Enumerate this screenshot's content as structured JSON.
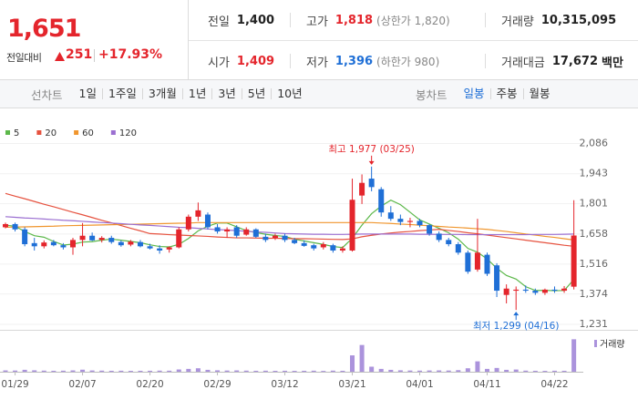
{
  "header": {
    "price": "1,651",
    "change_label": "전일대비",
    "change": "251",
    "change_rate": "+17.93%",
    "stats": [
      [
        {
          "label": "전일",
          "value": "1,400"
        },
        {
          "label": "고가",
          "value": "1,818",
          "note": "(상한가 1,820)"
        },
        {
          "label": "거래량",
          "value": "10,315,095"
        }
      ],
      [
        {
          "label": "시가",
          "value": "1,409"
        },
        {
          "label": "저가",
          "value": "1,396",
          "note": "(하한가 980)"
        },
        {
          "label": "거래대금",
          "value": "17,672",
          "unit": "백만"
        }
      ]
    ]
  },
  "tabs": {
    "line_heading": "선차트",
    "line_periods": [
      "1일",
      "1주일",
      "3개월",
      "1년",
      "3년",
      "5년",
      "10년"
    ],
    "candle_heading": "봉차트",
    "candle_periods": [
      "일봉",
      "주봉",
      "월봉"
    ]
  },
  "chart_data": {
    "type": "candlestick",
    "categories": [
      null,
      "01/29",
      null,
      null,
      null,
      null,
      null,
      null,
      "02/07",
      null,
      null,
      null,
      null,
      null,
      null,
      "02/20",
      null,
      null,
      null,
      null,
      null,
      null,
      "02/29",
      null,
      null,
      null,
      null,
      null,
      null,
      "03/12",
      null,
      null,
      null,
      null,
      null,
      null,
      "03/21",
      null,
      null,
      null,
      null,
      null,
      null,
      "04/01",
      null,
      null,
      null,
      null,
      null,
      null,
      "04/11",
      null,
      null,
      null,
      null,
      null,
      null,
      "04/22",
      null,
      null
    ],
    "open": [
      1690,
      1705,
      1680,
      1615,
      1600,
      1620,
      1605,
      1595,
      1630,
      1650,
      1630,
      1640,
      1620,
      1608,
      1620,
      1600,
      1590,
      1585,
      1595,
      1680,
      1740,
      1750,
      1690,
      1670,
      1690,
      1655,
      1680,
      1645,
      1640,
      1650,
      1630,
      1615,
      1605,
      1595,
      1605,
      1580,
      1580,
      1840,
      1920,
      1870,
      1760,
      1730,
      1715,
      1720,
      1700,
      1660,
      1630,
      1610,
      1570,
      1490,
      1560,
      1510,
      1370,
      1390,
      1395,
      1390,
      1380,
      1395,
      1390,
      1409
    ],
    "high": [
      1712,
      1712,
      1690,
      1640,
      1628,
      1630,
      1615,
      1640,
      1710,
      1665,
      1648,
      1650,
      1628,
      1630,
      1630,
      1612,
      1605,
      1600,
      1690,
      1750,
      1807,
      1760,
      1705,
      1690,
      1700,
      1690,
      1685,
      1660,
      1660,
      1660,
      1640,
      1628,
      1612,
      1620,
      1612,
      1600,
      1920,
      1940,
      1977,
      1880,
      1790,
      1750,
      1735,
      1730,
      1705,
      1670,
      1640,
      1620,
      1580,
      1730,
      1570,
      1520,
      1420,
      1410,
      1415,
      1400,
      1400,
      1410,
      1412,
      1818
    ],
    "low": [
      1685,
      1670,
      1600,
      1580,
      1590,
      1600,
      1585,
      1560,
      1600,
      1625,
      1618,
      1612,
      1598,
      1600,
      1595,
      1585,
      1565,
      1570,
      1590,
      1670,
      1720,
      1680,
      1660,
      1640,
      1640,
      1650,
      1640,
      1620,
      1630,
      1620,
      1610,
      1598,
      1580,
      1585,
      1570,
      1570,
      1575,
      1800,
      1860,
      1740,
      1720,
      1700,
      1690,
      1690,
      1650,
      1620,
      1600,
      1560,
      1470,
      1480,
      1460,
      1360,
      1330,
      1299,
      1380,
      1370,
      1370,
      1380,
      1380,
      1396
    ],
    "close": [
      1705,
      1680,
      1610,
      1600,
      1618,
      1605,
      1595,
      1630,
      1650,
      1628,
      1640,
      1620,
      1605,
      1622,
      1600,
      1590,
      1580,
      1595,
      1680,
      1740,
      1770,
      1690,
      1670,
      1680,
      1650,
      1680,
      1645,
      1630,
      1650,
      1630,
      1615,
      1602,
      1590,
      1610,
      1580,
      1590,
      1820,
      1900,
      1880,
      1760,
      1730,
      1715,
      1720,
      1700,
      1660,
      1630,
      1610,
      1570,
      1480,
      1570,
      1470,
      1390,
      1400,
      1395,
      1390,
      1380,
      1395,
      1390,
      1400,
      1651
    ],
    "up_color": "#e4252c",
    "down_color": "#1f6fd6",
    "series": [
      {
        "name": "5",
        "color": "#5cb84a",
        "values": [
          1700,
          1695,
          1670,
          1650,
          1643,
          1623,
          1606,
          1610,
          1620,
          1622,
          1629,
          1634,
          1629,
          1623,
          1617,
          1607,
          1599,
          1597,
          1609,
          1637,
          1673,
          1695,
          1710,
          1710,
          1692,
          1674,
          1665,
          1657,
          1651,
          1647,
          1634,
          1625,
          1617,
          1609,
          1599,
          1594,
          1638,
          1700,
          1754,
          1790,
          1818,
          1797,
          1761,
          1725,
          1705,
          1685,
          1664,
          1634,
          1590,
          1572,
          1540,
          1496,
          1462,
          1445,
          1409,
          1391,
          1392,
          1390,
          1391,
          1443
        ]
      },
      {
        "name": "20",
        "color": "#e6523f",
        "values": [
          1850,
          1837,
          1825,
          1812,
          1799,
          1787,
          1774,
          1761,
          1749,
          1736,
          1723,
          1711,
          1698,
          1685,
          1673,
          1660,
          1658,
          1655,
          1653,
          1651,
          1649,
          1647,
          1644,
          1642,
          1640,
          1640,
          1639,
          1638,
          1638,
          1637,
          1636,
          1636,
          1635,
          1634,
          1633,
          1632,
          1635,
          1645,
          1652,
          1658,
          1663,
          1667,
          1670,
          1674,
          1677,
          1680,
          1675,
          1670,
          1664,
          1659,
          1653,
          1647,
          1641,
          1635,
          1629,
          1623,
          1617,
          1611,
          1605,
          1600
        ]
      },
      {
        "name": "60",
        "color": "#f0962e",
        "values": [
          1690,
          1691,
          1692,
          1693,
          1694,
          1695,
          1697,
          1698,
          1699,
          1700,
          1701,
          1702,
          1703,
          1704,
          1705,
          1706,
          1707,
          1708,
          1709,
          1710,
          1712,
          1712,
          1712,
          1712,
          1712,
          1712,
          1712,
          1712,
          1712,
          1712,
          1712,
          1712,
          1712,
          1712,
          1712,
          1712,
          1712,
          1712,
          1712,
          1710,
          1708,
          1705,
          1703,
          1700,
          1697,
          1694,
          1691,
          1689,
          1686,
          1683,
          1680,
          1675,
          1670,
          1664,
          1658,
          1653,
          1647,
          1642,
          1636,
          1630
        ]
      },
      {
        "name": "120",
        "color": "#9b6fd1",
        "values": [
          1740,
          1737,
          1734,
          1732,
          1729,
          1726,
          1723,
          1721,
          1718,
          1715,
          1712,
          1710,
          1707,
          1704,
          1701,
          1699,
          1696,
          1693,
          1690,
          1688,
          1685,
          1682,
          1679,
          1677,
          1674,
          1671,
          1668,
          1666,
          1663,
          1660,
          1659,
          1658,
          1657,
          1657,
          1656,
          1656,
          1657,
          1658,
          1658,
          1658,
          1658,
          1658,
          1658,
          1657,
          1657,
          1656,
          1656,
          1656,
          1655,
          1655,
          1655,
          1655,
          1655,
          1655,
          1655,
          1656,
          1656,
          1656,
          1657,
          1658
        ]
      }
    ],
    "volume": {
      "name": "거래량",
      "color": "#ab93dc",
      "ylim": [
        0,
        11000000
      ],
      "values": [
        420000,
        380000,
        610000,
        450000,
        350000,
        300000,
        330000,
        420000,
        650000,
        400000,
        350000,
        300000,
        320000,
        280000,
        300000,
        310000,
        350000,
        330000,
        720000,
        900000,
        1100000,
        600000,
        450000,
        380000,
        420000,
        350000,
        300000,
        330000,
        290000,
        310000,
        280000,
        300000,
        330000,
        260000,
        350000,
        300000,
        5200000,
        8500000,
        1600000,
        900000,
        600000,
        450000,
        380000,
        350000,
        400000,
        420000,
        380000,
        500000,
        1100000,
        3300000,
        900000,
        1200000,
        600000,
        700000,
        350000,
        300000,
        280000,
        320000,
        300000,
        10315095
      ]
    },
    "annotations": [
      "최고 1,977 (03/25)",
      "최저 1,299 (04/16)"
    ],
    "ylim": [
      1205,
      2140
    ],
    "yticks": [
      {
        "value": 1231,
        "label": "1,231"
      },
      {
        "value": 1374,
        "label": "1,374"
      },
      {
        "value": 1516,
        "label": "1,516"
      },
      {
        "value": 1658,
        "label": "1,658"
      },
      {
        "value": 1801,
        "label": "1,801"
      },
      {
        "value": 1943,
        "label": "1,943"
      },
      {
        "value": 2086,
        "label": "2,086"
      }
    ],
    "grid": true
  }
}
